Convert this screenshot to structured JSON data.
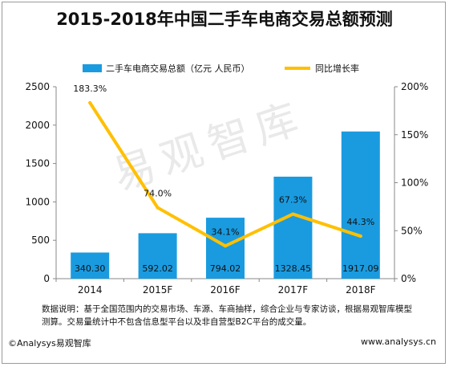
{
  "chart_data": {
    "type": "bar",
    "title": "2015-2018年中国二手车电商交易总额预测",
    "categories": [
      "2014",
      "2015F",
      "2016F",
      "2017F",
      "2018F"
    ],
    "series": [
      {
        "name": "二手车电商交易总额（亿元 人民币）",
        "type": "bar",
        "axis": "left",
        "values": [
          340.3,
          592.02,
          794.02,
          1328.45,
          1917.09
        ],
        "labels": [
          "340.30",
          "592.02",
          "794.02",
          "1328.45",
          "1917.09"
        ],
        "color": "#1a9be0"
      },
      {
        "name": "同比增长率",
        "type": "line",
        "axis": "right",
        "values": [
          183.3,
          74.0,
          34.1,
          67.3,
          44.3
        ],
        "labels": [
          "183.3%",
          "74.0%",
          "34.1%",
          "67.3%",
          "44.3%"
        ],
        "color": "#ffc000"
      }
    ],
    "y_left": {
      "min": 0,
      "max": 2500,
      "ticks": [
        "0",
        "500",
        "1000",
        "1500",
        "2000",
        "2500"
      ]
    },
    "y_right": {
      "min": 0,
      "max": 200,
      "ticks": [
        "0%",
        "50%",
        "100%",
        "150%",
        "200%"
      ]
    },
    "legend": "top-center",
    "grid": false
  },
  "note": "数据说明：基于全国范围内的交易市场、车源、车商抽样，综合企业与专家访谈，根据易观智库模型测算。交易量统计中不包含信息型平台以及非自营型B2C平台的成交量。",
  "footer": {
    "copyright": "©Analysys易观智库",
    "website": "www.analysys.cn"
  },
  "watermark": "易观智库"
}
